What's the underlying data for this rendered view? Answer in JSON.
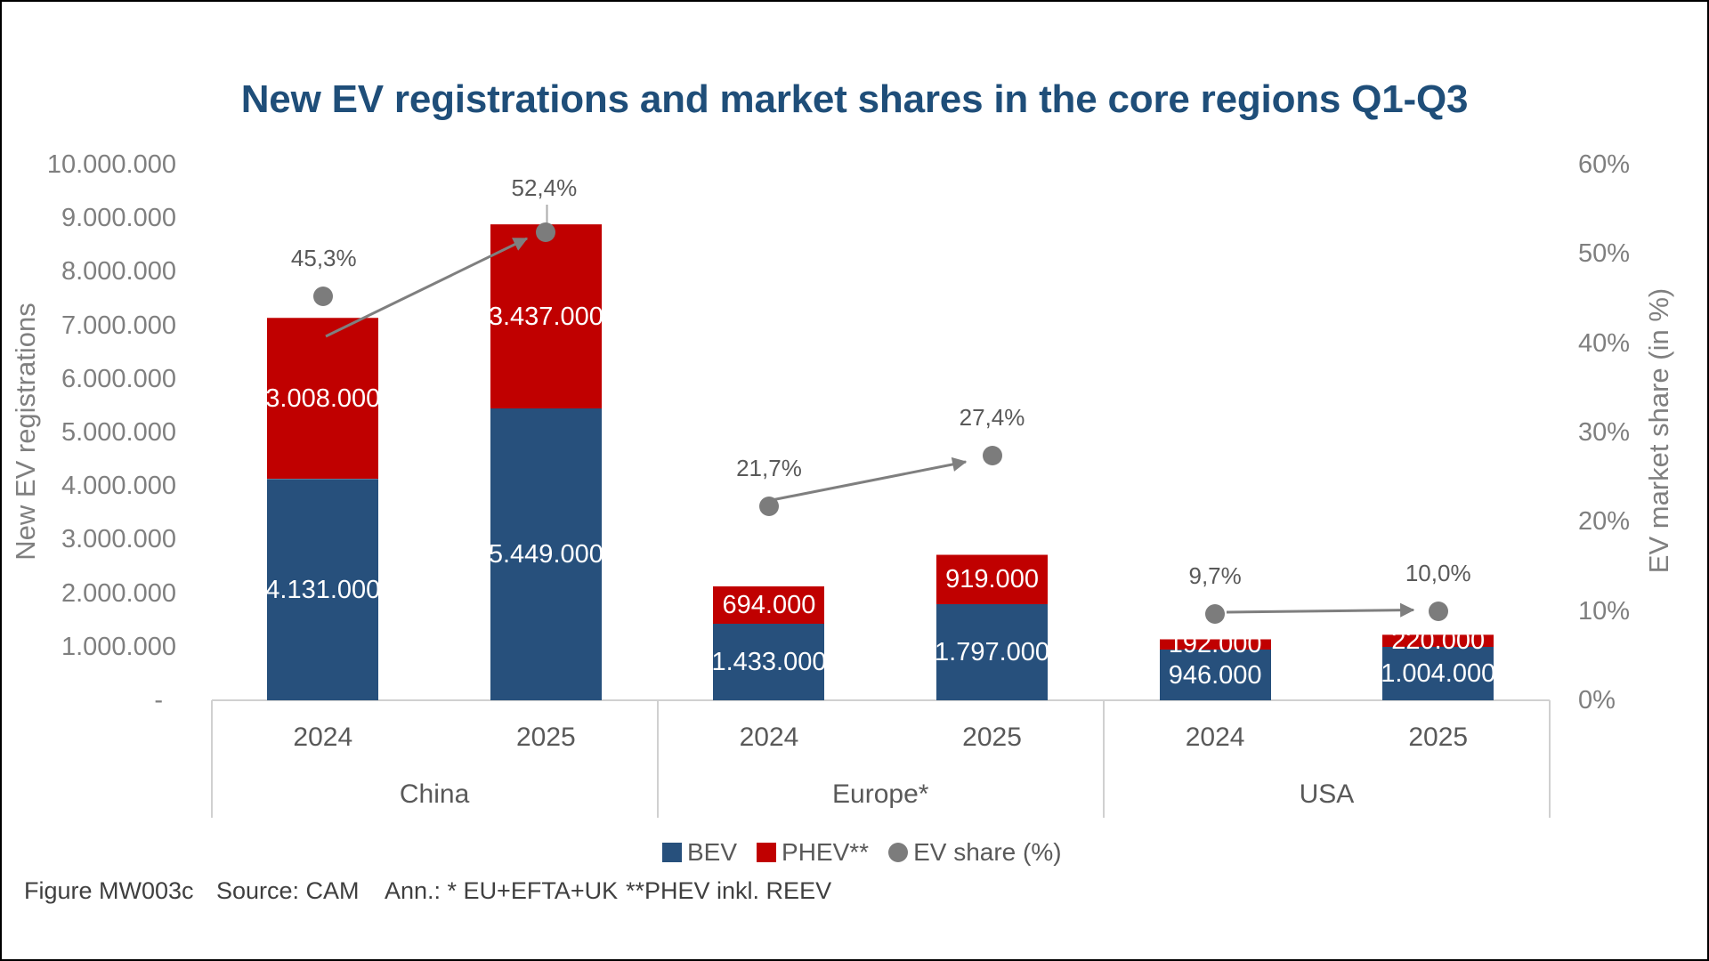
{
  "colors": {
    "title": "#1f4e79",
    "bev_blue": "#27507c",
    "phev_red": "#c00000",
    "share_gray": "#7c7c7c",
    "arrow_gray": "#7f7f7f",
    "leader_gray": "#ababab",
    "tick_gray": "#7f7f7f",
    "category_gray": "#595959",
    "legend_text": "#595959",
    "footer_text": "#3f3f3f",
    "axis_line": "#d0d0d0",
    "bar_label_white": "#ffffff",
    "frame_black": "#000000"
  },
  "chart_data": {
    "type": "bar",
    "subtype": "stacked-column-with-share-points",
    "title": "New EV registrations and market shares in the core regions Q1-Q3",
    "ylabel": "New EV registrations",
    "ylabel_right": "EV market share (in %)",
    "xlabel": "",
    "grid": "off",
    "legend_position": "bottom",
    "ylim": [
      0,
      10000000
    ],
    "ylim_right_percent": [
      0,
      60
    ],
    "left_axis_ticks": [
      "-",
      "1.000.000",
      "2.000.000",
      "3.000.000",
      "4.000.000",
      "5.000.000",
      "6.000.000",
      "7.000.000",
      "8.000.000",
      "9.000.000",
      "10.000.000"
    ],
    "right_axis_ticks": [
      "0%",
      "10%",
      "20%",
      "30%",
      "40%",
      "50%",
      "60%"
    ],
    "groups": [
      {
        "label": "China",
        "years": [
          "2024",
          "2025"
        ]
      },
      {
        "label": "Europe*",
        "years": [
          "2024",
          "2025"
        ]
      },
      {
        "label": "USA",
        "years": [
          "2024",
          "2025"
        ]
      }
    ],
    "categories": [
      "China 2024",
      "China 2025",
      "Europe* 2024",
      "Europe* 2025",
      "USA 2024",
      "USA 2025"
    ],
    "series": [
      {
        "name": "BEV",
        "values": [
          4131000,
          5449000,
          1433000,
          1797000,
          946000,
          1004000
        ],
        "labels": [
          "4.131.000",
          "5.449.000",
          "1.433.000",
          "1.797.000",
          "946.000",
          "1.004.000"
        ]
      },
      {
        "name": "PHEV**",
        "values": [
          3008000,
          3437000,
          694000,
          919000,
          192000,
          220000
        ],
        "labels": [
          "3.008.000",
          "3.437.000",
          "694.000",
          "919.000",
          "192.000",
          "220.000"
        ]
      }
    ],
    "share_series": {
      "name": "EV share (%)",
      "values_percent": [
        45.3,
        52.4,
        21.7,
        27.4,
        9.7,
        10.0
      ],
      "labels": [
        "45,3%",
        "52,4%",
        "21,7%",
        "27,4%",
        "9,7%",
        "10,0%"
      ]
    },
    "trend_arrows": [
      {
        "from": "China 2024",
        "to": "China 2025"
      },
      {
        "from": "Europe* 2024",
        "to": "Europe* 2025"
      },
      {
        "from": "USA 2024",
        "to": "USA 2025"
      }
    ]
  },
  "legend": {
    "items": [
      {
        "label": "BEV",
        "marker": "square"
      },
      {
        "label": "PHEV**",
        "marker": "square"
      },
      {
        "label": "EV share (%)",
        "marker": "dot"
      }
    ]
  },
  "footer": {
    "items": [
      "Figure MW003c",
      "Source: CAM",
      "Ann.: * EU+EFTA+UK",
      "**PHEV inkl. REEV"
    ]
  }
}
